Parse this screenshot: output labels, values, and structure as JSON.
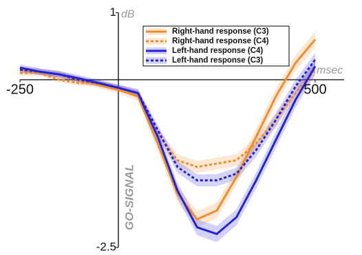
{
  "chart_data": {
    "type": "line",
    "y_unit": "dB",
    "x_unit": "msec",
    "annotation": "GO-SIGNAL",
    "x": [
      -250,
      -200,
      -150,
      -100,
      -50,
      0,
      50,
      100,
      150,
      200,
      250,
      300,
      350,
      400,
      450,
      500
    ],
    "series": [
      {
        "name": "Right-hand response (C3)",
        "color": "#f28c28",
        "dash": false,
        "values": [
          0.15,
          0.12,
          0.08,
          0.0,
          -0.08,
          -0.15,
          -0.25,
          -0.95,
          -1.7,
          -2.08,
          -1.95,
          -1.45,
          -0.85,
          -0.25,
          0.25,
          0.6
        ],
        "errors": [
          0.05,
          0.05,
          0.05,
          0.05,
          0.05,
          0.05,
          0.06,
          0.1,
          0.12,
          0.12,
          0.12,
          0.12,
          0.12,
          0.12,
          0.12,
          0.12
        ]
      },
      {
        "name": "Right-hand response (C4)",
        "color": "#f28c28",
        "dash": true,
        "values": [
          0.1,
          0.1,
          0.0,
          -0.05,
          -0.05,
          -0.12,
          -0.22,
          -0.8,
          -1.2,
          -1.3,
          -1.25,
          -1.2,
          -0.95,
          -0.6,
          -0.2,
          0.15
        ],
        "errors": [
          0.04,
          0.04,
          0.04,
          0.04,
          0.04,
          0.04,
          0.05,
          0.08,
          0.09,
          0.09,
          0.09,
          0.09,
          0.1,
          0.1,
          0.1,
          0.1
        ]
      },
      {
        "name": "Left-hand response (C4)",
        "color": "#2222dd",
        "dash": false,
        "values": [
          0.18,
          0.12,
          0.08,
          0.02,
          -0.05,
          -0.12,
          -0.2,
          -0.85,
          -1.65,
          -2.2,
          -2.3,
          -2.05,
          -1.5,
          -0.9,
          -0.3,
          0.2
        ],
        "errors": [
          0.05,
          0.05,
          0.05,
          0.05,
          0.05,
          0.05,
          0.06,
          0.1,
          0.12,
          0.12,
          0.12,
          0.12,
          0.12,
          0.12,
          0.12,
          0.12
        ]
      },
      {
        "name": "Left-hand response (C3)",
        "color": "#2222dd",
        "dash": true,
        "values": [
          0.15,
          0.12,
          0.08,
          0.0,
          -0.05,
          -0.12,
          -0.2,
          -0.75,
          -1.3,
          -1.5,
          -1.5,
          -1.4,
          -1.05,
          -0.6,
          -0.1,
          0.3
        ],
        "errors": [
          0.04,
          0.04,
          0.04,
          0.04,
          0.04,
          0.04,
          0.05,
          0.08,
          0.09,
          0.09,
          0.09,
          0.09,
          0.1,
          0.1,
          0.1,
          0.1
        ]
      }
    ],
    "xlim": [
      -250,
      500
    ],
    "ylim": [
      -2.5,
      1
    ],
    "xticks": [
      -250,
      500
    ],
    "yticks": [
      -2.5,
      1
    ]
  }
}
